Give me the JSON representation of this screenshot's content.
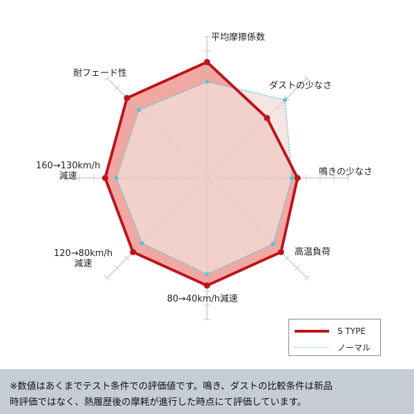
{
  "chart_data": {
    "type": "radar",
    "axes": [
      "平均摩擦係数",
      "ダストの少なさ",
      "鳴きの少なさ",
      "高温負荷",
      "80→40km/h減速",
      "120→80km/h\n減速",
      "160→130km/h\n減速",
      "耐フェード性"
    ],
    "rmax": 10,
    "grid": true,
    "legend_position": "bottom-right",
    "series": [
      {
        "name": "S TYPE",
        "values": [
          8.2,
          6.0,
          6.4,
          7.4,
          7.6,
          7.4,
          7.2,
          8.0
        ],
        "color": "#c0121c",
        "fill": "#ec9a92"
      },
      {
        "name": "ノーマル",
        "values": [
          6.8,
          7.8,
          6.0,
          6.6,
          6.8,
          6.5,
          6.4,
          6.8
        ],
        "color": "#5bc3dc"
      }
    ]
  },
  "footnote": {
    "line1": "※数値はあくまでテスト条件での評価値です。鳴き、ダストの比較条件は新品",
    "line2": "時評価ではなく、熱履歴後の摩耗が進行した時点にて評価しています。"
  }
}
